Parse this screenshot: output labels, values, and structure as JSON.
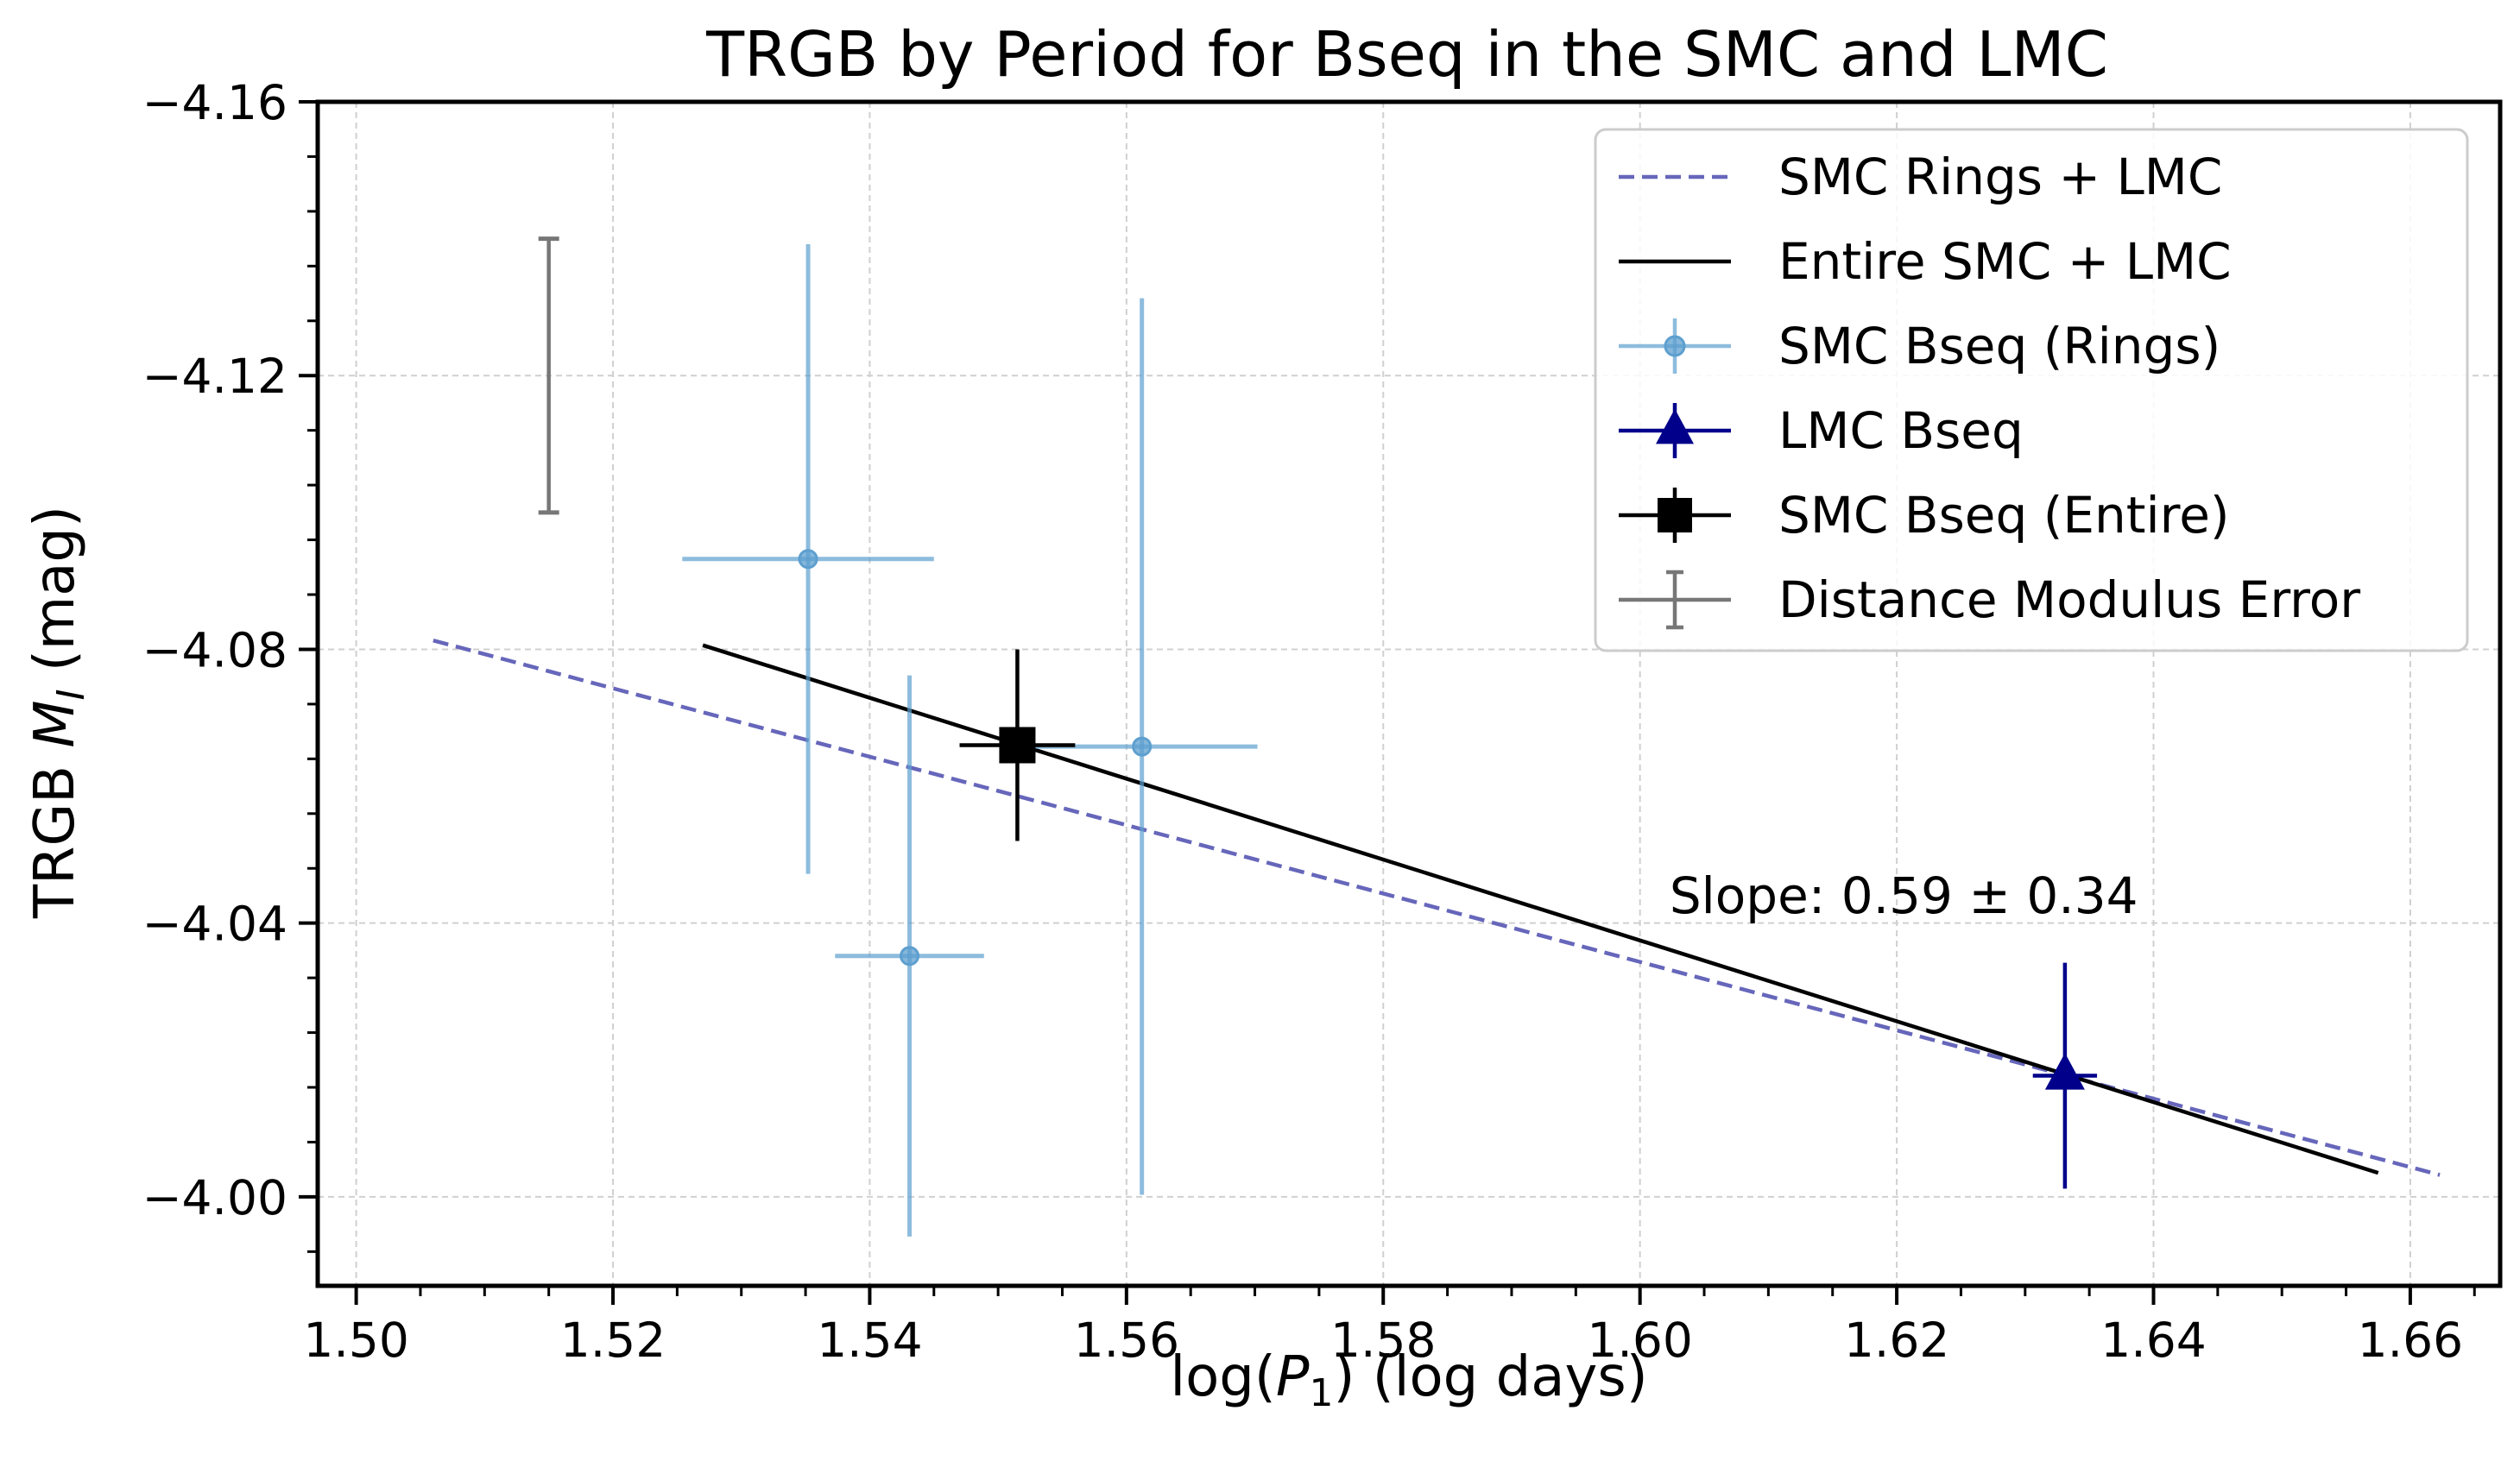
{
  "chart_data": {
    "type": "scatter",
    "title": "TRGB by Period for Bseq in the SMC and LMC",
    "xlabel": {
      "prefix": "log(",
      "var": "P",
      "sub": "1",
      "suffix": ") (log days)"
    },
    "ylabel": {
      "prefix": "TRGB ",
      "var": "M",
      "sub": "I",
      "suffix": " (mag)"
    },
    "xlim": [
      1.497,
      1.667
    ],
    "ylim": [
      -4.16,
      -3.987
    ],
    "y_inverted": true,
    "grid": true,
    "x_ticks": [
      1.5,
      1.52,
      1.54,
      1.56,
      1.58,
      1.6,
      1.62,
      1.64,
      1.66
    ],
    "x_tick_labels": [
      "1.50",
      "1.52",
      "1.54",
      "1.56",
      "1.58",
      "1.60",
      "1.62",
      "1.64",
      "1.66"
    ],
    "y_ticks": [
      -4.16,
      -4.12,
      -4.08,
      -4.04,
      -4.0
    ],
    "y_tick_labels": [
      "−4.16",
      "−4.12",
      "−4.08",
      "−4.04",
      "−4.00"
    ],
    "legend_position": "top-right",
    "series": [
      {
        "name": "SMC Rings + LMC",
        "kind": "line",
        "style": "dashed",
        "color": "#6666bb",
        "x": [
          1.506,
          1.6623
        ],
        "y": [
          -4.0813,
          -4.0032
        ]
      },
      {
        "name": "Entire SMC + LMC",
        "kind": "line",
        "style": "solid",
        "color": "#000000",
        "x": [
          1.527,
          1.6575
        ],
        "y": [
          -4.0806,
          -4.0035
        ]
      },
      {
        "name": "SMC Bseq (Rings)",
        "kind": "errorbar",
        "marker": "circle",
        "color": "#5d9fcf",
        "points": [
          {
            "x": 1.5352,
            "y": -4.0932,
            "xerr": 0.0098,
            "yerr": 0.046
          },
          {
            "x": 1.5431,
            "y": -4.0352,
            "xerr": 0.0058,
            "yerr": 0.041
          },
          {
            "x": 1.5612,
            "y": -4.0658,
            "xerr": 0.009,
            "yerr": 0.0655
          }
        ]
      },
      {
        "name": "LMC Bseq",
        "kind": "errorbar",
        "marker": "triangle",
        "color": "#00008b",
        "points": [
          {
            "x": 1.6331,
            "y": -4.0177,
            "xerr": 0.0025,
            "yerr": 0.0165
          }
        ]
      },
      {
        "name": "SMC Bseq (Entire)",
        "kind": "errorbar",
        "marker": "square",
        "color": "#000000",
        "points": [
          {
            "x": 1.5515,
            "y": -4.066,
            "xerr": 0.0045,
            "yerr": 0.014
          }
        ]
      },
      {
        "name": "Distance Modulus Error",
        "kind": "errorbar",
        "marker": "none",
        "color": "#777777",
        "points": [
          {
            "x": 1.515,
            "y": -4.12,
            "xerr": 0,
            "yerr": 0.02
          }
        ]
      }
    ],
    "annotations": [
      {
        "text": "Slope: 0.59 ± 0.34",
        "x": 1.6023,
        "y": -4.0415
      }
    ]
  }
}
